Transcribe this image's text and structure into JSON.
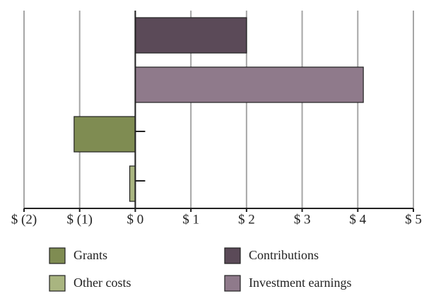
{
  "chart_data": {
    "type": "bar",
    "orientation": "horizontal",
    "series": [
      {
        "name": "Contributions",
        "color": "#5b4a58",
        "values": [
          2.0
        ]
      },
      {
        "name": "Investment earnings",
        "color": "#8f7a8b",
        "values": [
          4.1
        ]
      },
      {
        "name": "Grants",
        "color": "#7f8c52",
        "values": [
          -1.1
        ]
      },
      {
        "name": "Other costs",
        "color": "#a9b580",
        "values": [
          -0.1
        ]
      }
    ],
    "xlim": [
      -2,
      5
    ],
    "xticks": [
      {
        "value": -2,
        "label": "$ (2)"
      },
      {
        "value": -1,
        "label": "$ (1)"
      },
      {
        "value": 0,
        "label": "$ 0"
      },
      {
        "value": 1,
        "label": "$ 1"
      },
      {
        "value": 2,
        "label": "$ 2"
      },
      {
        "value": 3,
        "label": "$ 3"
      },
      {
        "value": 4,
        "label": "$ 4"
      },
      {
        "value": 5,
        "label": "$ 5"
      }
    ],
    "grid": true,
    "legend": "bottom"
  }
}
